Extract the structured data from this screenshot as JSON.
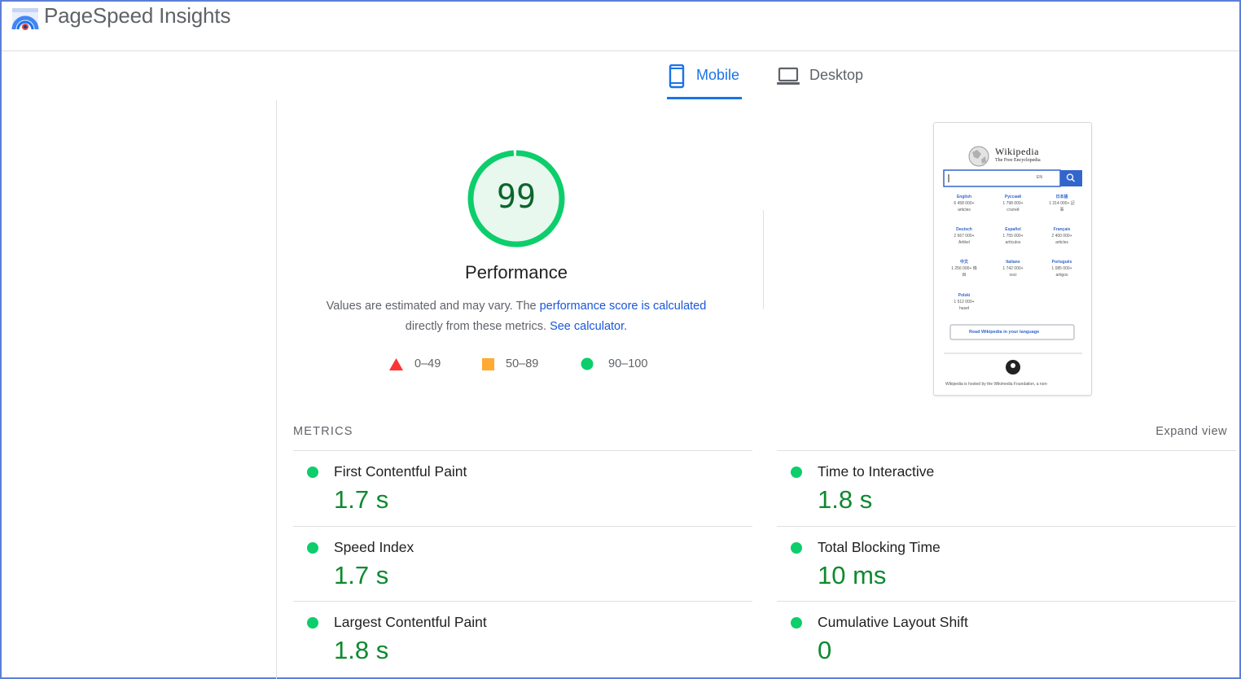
{
  "header": {
    "brand": "PageSpeed Insights",
    "logo_icon": "pagespeed-logo-icon"
  },
  "tabs": [
    {
      "label": "Mobile",
      "icon": "phone-icon",
      "active": true
    },
    {
      "label": "Desktop",
      "icon": "laptop-icon",
      "active": false
    }
  ],
  "score": {
    "value": "99",
    "fraction": 0.99,
    "title": "Performance",
    "color": "#0cce6b"
  },
  "description": {
    "text1": "Values are estimated and may vary. The ",
    "link1": "performance score is calculated",
    "text2": "directly from these metrics. ",
    "link2": "See calculator."
  },
  "legend": [
    {
      "range": "0–49",
      "shape": "triangle",
      "color": "#ff3333"
    },
    {
      "range": "50–89",
      "shape": "square",
      "color": "#ffaa33"
    },
    {
      "range": "90–100",
      "shape": "circle",
      "color": "#0cce6b"
    }
  ],
  "thumbnail": {
    "site_title": "Wikipedia",
    "site_subtitle": "The Free Encyclopedia",
    "lang_selector": "EN",
    "languages": [
      {
        "name": "English",
        "count": "6 458 000+",
        "unit": "articles"
      },
      {
        "name": "Русский",
        "count": "1 798 000+",
        "unit": "статей"
      },
      {
        "name": "日本語",
        "count": "1 314 000+ 記",
        "unit": "事"
      },
      {
        "name": "Deutsch",
        "count": "2 667 000+",
        "unit": "Artikel"
      },
      {
        "name": "Español",
        "count": "1 755 000+",
        "unit": "artículos"
      },
      {
        "name": "Français",
        "count": "2 400 000+",
        "unit": "articles"
      },
      {
        "name": "中文",
        "count": "1 256 000+ 條",
        "unit": "目"
      },
      {
        "name": "Italiano",
        "count": "1 742 000+",
        "unit": "voci"
      },
      {
        "name": "Português",
        "count": "1 085 000+",
        "unit": "artigos"
      },
      {
        "name": "Polski",
        "count": "1 512 000+",
        "unit": "haseł"
      }
    ],
    "read_button": "Read Wikipedia in your language",
    "footer": "Wikipedia is hosted by the Wikimedia Foundation, a non-"
  },
  "metrics": {
    "title": "METRICS",
    "expand": "Expand view",
    "items": [
      {
        "label": "First Contentful Paint",
        "value": "1.7 s"
      },
      {
        "label": "Time to Interactive",
        "value": "1.8 s"
      },
      {
        "label": "Speed Index",
        "value": "1.7 s"
      },
      {
        "label": "Total Blocking Time",
        "value": "10 ms"
      },
      {
        "label": "Largest Contentful Paint",
        "value": "1.8 s"
      },
      {
        "label": "Cumulative Layout Shift",
        "value": "0"
      }
    ],
    "status_color": "#0cce6b"
  }
}
